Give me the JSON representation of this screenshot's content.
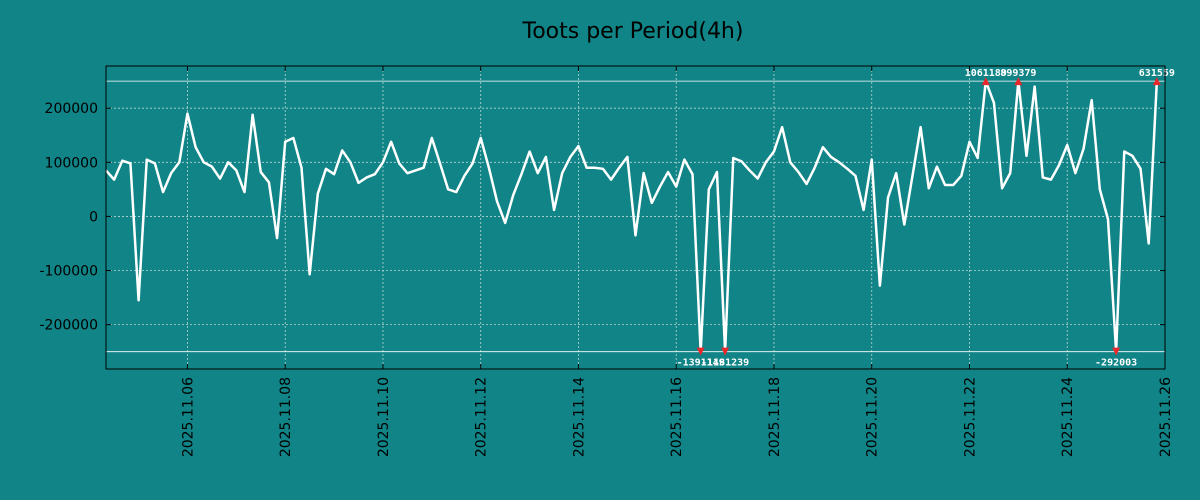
{
  "chart_data": {
    "type": "line",
    "title": "Toots per Period(4h)",
    "xlabel": "",
    "ylabel": "",
    "x_tick_labels": [
      "2025.11.06",
      "2025.11.08",
      "2025.11.10",
      "2025.11.12",
      "2025.11.14",
      "2025.11.16",
      "2025.11.18",
      "2025.11.20",
      "2025.11.22",
      "2025.11.24",
      "2025.11.26"
    ],
    "y_ticks": [
      -200000,
      -100000,
      0,
      100000,
      200000
    ],
    "y_tick_labels": [
      "-200000",
      "-100000",
      "0",
      "100000",
      "200000"
    ],
    "xlim": [
      0,
      130
    ],
    "ylim": [
      -282000,
      278000
    ],
    "grid": true,
    "clip_lines": {
      "upper": 250000,
      "lower": -250000
    },
    "series": [
      {
        "name": "toots",
        "values": [
          85000,
          68000,
          103000,
          98000,
          -155000,
          105000,
          98000,
          45000,
          80000,
          100000,
          190000,
          128000,
          100000,
          92000,
          70000,
          100000,
          85000,
          45000,
          188000,
          82000,
          63000,
          -40000,
          138000,
          145000,
          90000,
          -107000,
          42000,
          88000,
          78000,
          122000,
          100000,
          62000,
          72000,
          78000,
          100000,
          138000,
          98000,
          80000,
          85000,
          90000,
          145000,
          98000,
          50000,
          45000,
          75000,
          98000,
          145000,
          90000,
          28000,
          -12000,
          40000,
          78000,
          120000,
          80000,
          110000,
          12000,
          80000,
          110000,
          130000,
          90000,
          90000,
          88000,
          68000,
          90000,
          110000,
          -35000,
          80000,
          25000,
          55000,
          82000,
          55000,
          105000,
          78000,
          -250000,
          50000,
          82000,
          -250000,
          108000,
          102000,
          85000,
          70000,
          100000,
          120000,
          165000,
          100000,
          82000,
          60000,
          90000,
          128000,
          110000,
          100000,
          88000,
          75000,
          12000,
          105000,
          -128000,
          35000,
          80000,
          -15000,
          75000,
          165000,
          52000,
          92000,
          58000,
          58000,
          75000,
          138000,
          108000,
          250000,
          210000,
          52000,
          80000,
          250000,
          112000,
          240000,
          72000,
          68000,
          95000,
          132000,
          80000,
          125000,
          215000,
          50000,
          -5000,
          -250000,
          120000,
          112000,
          88000,
          -50000,
          250000
        ]
      }
    ],
    "annotations": [
      {
        "label": "-1391149",
        "x": 73,
        "y": -250000,
        "position": "below"
      },
      {
        "label": "-1181239",
        "x": 76,
        "y": -250000,
        "position": "below"
      },
      {
        "label": "1061189",
        "x": 108,
        "y": 250000,
        "position": "above"
      },
      {
        "label": "899379",
        "x": 112,
        "y": 250000,
        "position": "above"
      },
      {
        "label": "-292003",
        "x": 124,
        "y": -250000,
        "position": "below"
      },
      {
        "label": "631559",
        "x": 129,
        "y": 250000,
        "position": "above"
      }
    ],
    "colors": {
      "background": "#108486",
      "line": "#ffffff",
      "marker": "#e8282b",
      "frame": "#000000",
      "grid": "#b8d6d6"
    }
  }
}
